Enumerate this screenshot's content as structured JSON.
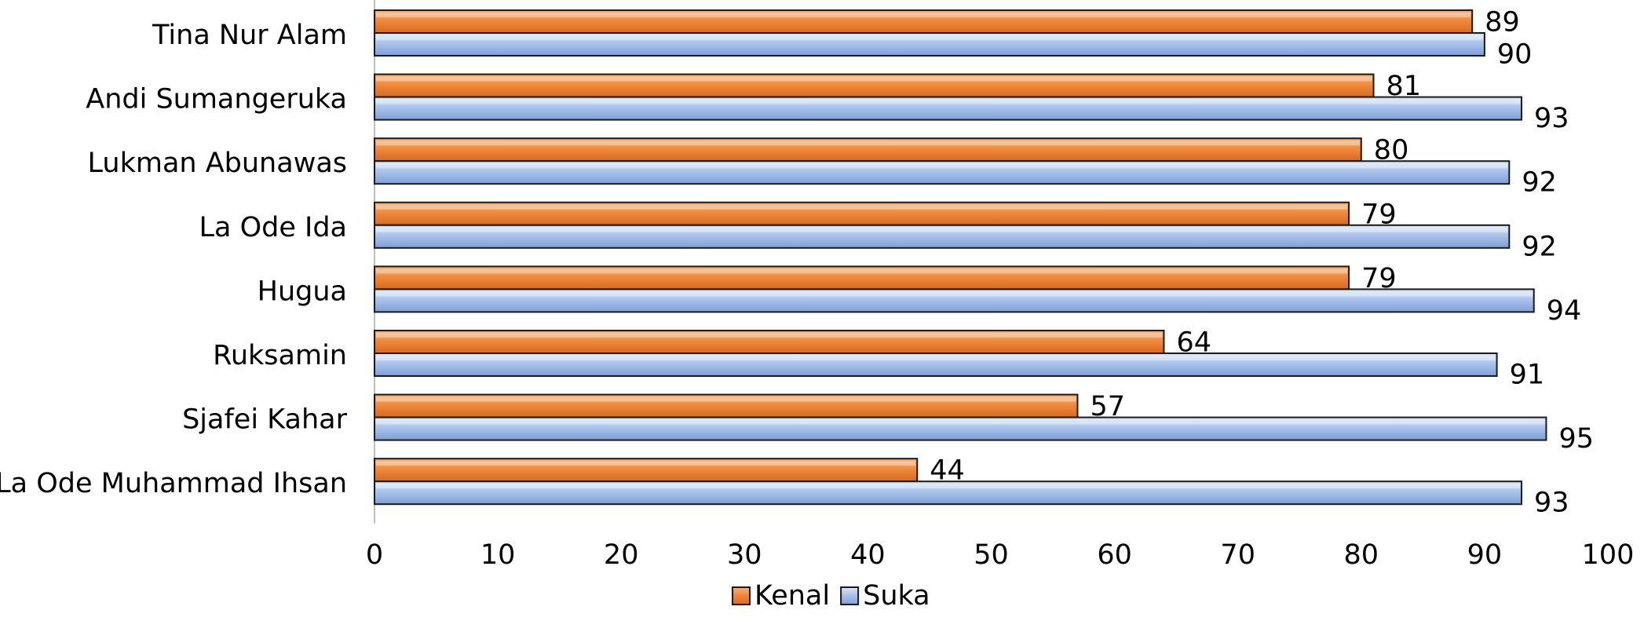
{
  "chart_data": {
    "type": "bar",
    "orientation": "horizontal",
    "categories": [
      "Tina Nur Alam",
      "Andi Sumangeruka",
      "Lukman Abunawas",
      "La Ode Ida",
      "Hugua",
      "Ruksamin",
      "Sjafei Kahar",
      "La Ode Muhammad Ihsan"
    ],
    "series": [
      {
        "name": "Kenal",
        "values": [
          89,
          81,
          80,
          79,
          79,
          64,
          57,
          44
        ],
        "color": "#f08a3c"
      },
      {
        "name": "Suka",
        "values": [
          90,
          93,
          92,
          92,
          94,
          91,
          95,
          93
        ],
        "color": "#9fbbe6"
      }
    ],
    "xlim": [
      0,
      100
    ],
    "xticks": [
      0,
      10,
      20,
      30,
      40,
      50,
      60,
      70,
      80,
      90,
      100
    ],
    "title": "",
    "xlabel": "",
    "ylabel": "",
    "grid": false,
    "legend": "bottom"
  }
}
